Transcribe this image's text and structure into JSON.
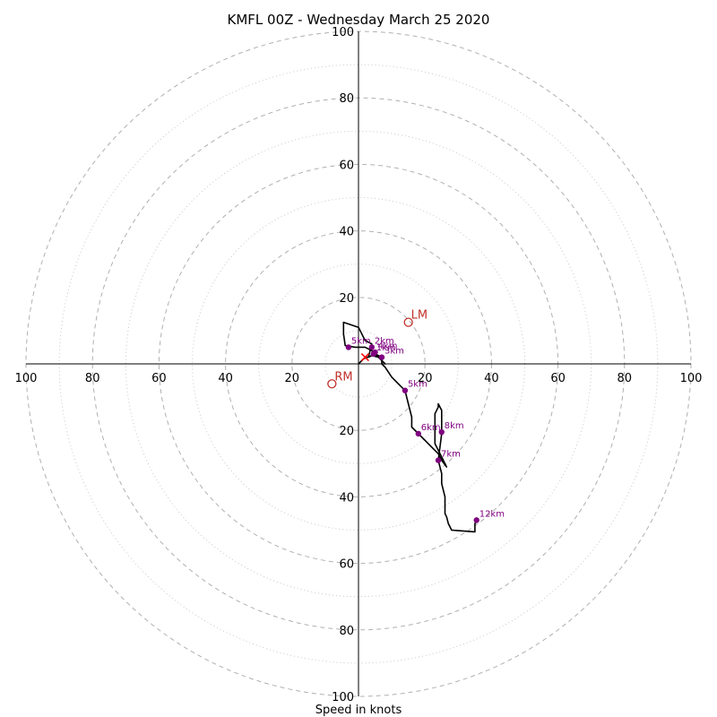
{
  "chart_data": {
    "type": "hodograph",
    "title": "KMFL 00Z - Wednesday March 25 2020",
    "xlabel": "Speed in knots",
    "units": "knots",
    "ring_range": [
      0,
      100
    ],
    "major_rings": [
      20,
      40,
      60,
      80,
      100
    ],
    "minor_rings": [
      10,
      30,
      50,
      70,
      90
    ],
    "axis_ticks": {
      "right": [
        "20",
        "40",
        "60",
        "80",
        "100"
      ],
      "left": [
        "20",
        "40",
        "60",
        "80",
        "100"
      ],
      "up": [
        "20",
        "40",
        "60",
        "80",
        "100"
      ],
      "down": [
        "20",
        "40",
        "60",
        "80",
        "100"
      ]
    },
    "trace": [
      [
        0,
        0
      ],
      [
        1.5,
        1.5
      ],
      [
        4,
        2.5
      ],
      [
        6,
        2
      ],
      [
        8,
        0
      ],
      [
        4,
        4
      ],
      [
        2,
        5
      ],
      [
        -1,
        5
      ],
      [
        -4,
        5.5
      ],
      [
        -4.5,
        9
      ],
      [
        -4.5,
        12.5
      ],
      [
        -3,
        12
      ],
      [
        0,
        11
      ],
      [
        2,
        7
      ],
      [
        4,
        6
      ],
      [
        3,
        2
      ],
      [
        5,
        3
      ],
      [
        7,
        2
      ],
      [
        7,
        0
      ],
      [
        8,
        -1
      ],
      [
        10,
        -4
      ],
      [
        12,
        -6
      ],
      [
        14,
        -8
      ],
      [
        15,
        -12
      ],
      [
        16,
        -16
      ],
      [
        16,
        -19
      ],
      [
        18,
        -21
      ],
      [
        20,
        -23
      ],
      [
        22,
        -25
      ],
      [
        24,
        -27
      ],
      [
        25,
        -29
      ],
      [
        26.5,
        -31
      ],
      [
        25,
        -28
      ],
      [
        23,
        -24
      ],
      [
        23,
        -22
      ],
      [
        23,
        -20
      ],
      [
        23,
        -18
      ],
      [
        23,
        -15
      ],
      [
        24,
        -13
      ],
      [
        24,
        -12
      ],
      [
        25,
        -14
      ],
      [
        25,
        -16
      ],
      [
        25,
        -18
      ],
      [
        25,
        -21
      ],
      [
        24.5,
        -25
      ],
      [
        24,
        -29
      ],
      [
        25,
        -33
      ],
      [
        25,
        -36
      ],
      [
        26,
        -40
      ],
      [
        26,
        -45
      ],
      [
        26.5,
        -46
      ],
      [
        27,
        -48
      ],
      [
        28,
        -50
      ],
      [
        35,
        -50.5
      ],
      [
        35,
        -48
      ],
      [
        36,
        -47
      ]
    ],
    "height_markers": [
      {
        "label": "1km",
        "u": 4.5,
        "v": 3
      },
      {
        "label": "2km",
        "u": 4,
        "v": 5
      },
      {
        "label": "3km",
        "u": 7,
        "v": 2
      },
      {
        "label": "4km",
        "u": 5,
        "v": 3.5
      },
      {
        "label": "5km",
        "u": -3,
        "v": 5
      },
      {
        "label": "5km",
        "u": 14,
        "v": -8
      },
      {
        "label": "6km",
        "u": 18,
        "v": -21
      },
      {
        "label": "7km",
        "u": 24,
        "v": -29
      },
      {
        "label": "8km",
        "u": 25,
        "v": -20.5
      },
      {
        "label": "12km",
        "u": 35.5,
        "v": -47
      }
    ],
    "storm_motions": [
      {
        "label": "LM",
        "u": 15,
        "v": 12.5
      },
      {
        "label": "RM",
        "u": -8,
        "v": -6
      }
    ],
    "mean_wind": {
      "u": 2,
      "v": 2
    },
    "colors": {
      "trace": "#000000",
      "height_markers": "#800080",
      "storm_motion": "#c0302b",
      "mean_wind": "#ff0000",
      "rings": "#b0b0b0",
      "axes": "#000000"
    }
  }
}
